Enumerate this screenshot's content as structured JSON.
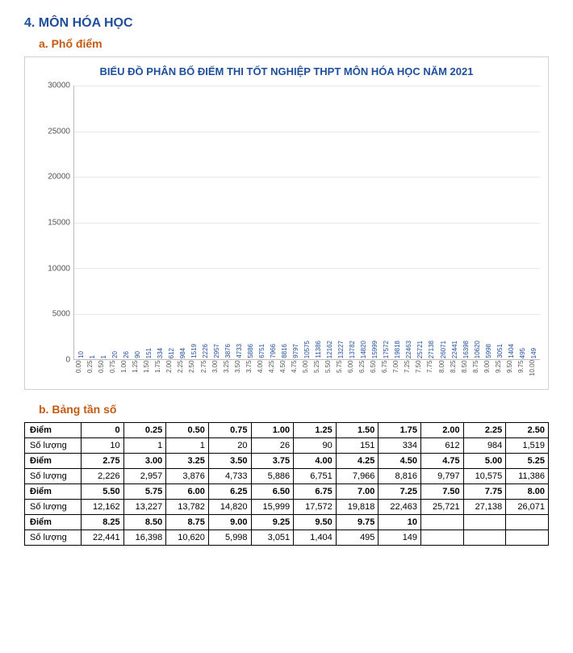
{
  "header": {
    "num": "4.",
    "title": "MÔN HÓA HỌC",
    "sub_a": "a.",
    "sub_a_text": "Phổ điểm",
    "sub_b": "b.",
    "sub_b_text": "Bảng tần số"
  },
  "chart": {
    "type": "bar",
    "title": "BIỂU ĐỒ PHÂN BỐ ĐIỂM THI TỐT NGHIỆP THPT MÔN HÓA HỌC NĂM 2021",
    "ylim": [
      0,
      30000
    ],
    "ytick_step": 5000,
    "bar_color": "#4472c4",
    "grid_color": "#e8e8e8",
    "axis_color": "#bbbbbb",
    "title_color": "#1f4e9c",
    "label_color": "#1f4e9c",
    "categories": [
      "0.00",
      "0.25",
      "0.50",
      "0.75",
      "1.00",
      "1.25",
      "1.50",
      "1.75",
      "2.00",
      "2.25",
      "2.50",
      "2.75",
      "3.00",
      "3.25",
      "3.50",
      "3.75",
      "4.00",
      "4.25",
      "4.50",
      "4.75",
      "5.00",
      "5.25",
      "5.50",
      "5.75",
      "6.00",
      "6.25",
      "6.50",
      "6.75",
      "7.00",
      "7.25",
      "7.50",
      "7.75",
      "8.00",
      "8.25",
      "8.50",
      "8.75",
      "9.00",
      "9.25",
      "9.50",
      "9.75",
      "10.00"
    ],
    "values": [
      10,
      1,
      1,
      20,
      26,
      90,
      151,
      334,
      612,
      984,
      1519,
      2226,
      2957,
      3876,
      4733,
      5886,
      6751,
      7966,
      8816,
      9797,
      10575,
      11386,
      12162,
      13227,
      13782,
      14820,
      15999,
      17572,
      19818,
      22463,
      25721,
      27138,
      26071,
      22441,
      16398,
      10620,
      5998,
      3051,
      1404,
      495,
      149
    ]
  },
  "table": {
    "row_header_score": "Điểm",
    "row_header_count": "Số lượng",
    "rows": [
      {
        "scores": [
          "0",
          "0.25",
          "0.50",
          "0.75",
          "1.00",
          "1.25",
          "1.50",
          "1.75",
          "2.00",
          "2.25",
          "2.50"
        ],
        "counts": [
          "10",
          "1",
          "1",
          "20",
          "26",
          "90",
          "151",
          "334",
          "612",
          "984",
          "1,519"
        ]
      },
      {
        "scores": [
          "2.75",
          "3.00",
          "3.25",
          "3.50",
          "3.75",
          "4.00",
          "4.25",
          "4.50",
          "4.75",
          "5.00",
          "5.25"
        ],
        "counts": [
          "2,226",
          "2,957",
          "3,876",
          "4,733",
          "5,886",
          "6,751",
          "7,966",
          "8,816",
          "9,797",
          "10,575",
          "11,386"
        ]
      },
      {
        "scores": [
          "5.50",
          "5.75",
          "6.00",
          "6.25",
          "6.50",
          "6.75",
          "7.00",
          "7.25",
          "7.50",
          "7.75",
          "8.00"
        ],
        "counts": [
          "12,162",
          "13,227",
          "13,782",
          "14,820",
          "15,999",
          "17,572",
          "19,818",
          "22,463",
          "25,721",
          "27,138",
          "26,071"
        ]
      },
      {
        "scores": [
          "8.25",
          "8.50",
          "8.75",
          "9.00",
          "9.25",
          "9.50",
          "9.75",
          "10",
          "",
          "",
          ""
        ],
        "counts": [
          "22,441",
          "16,398",
          "10,620",
          "5,998",
          "3,051",
          "1,404",
          "495",
          "149",
          "",
          "",
          ""
        ]
      }
    ]
  }
}
